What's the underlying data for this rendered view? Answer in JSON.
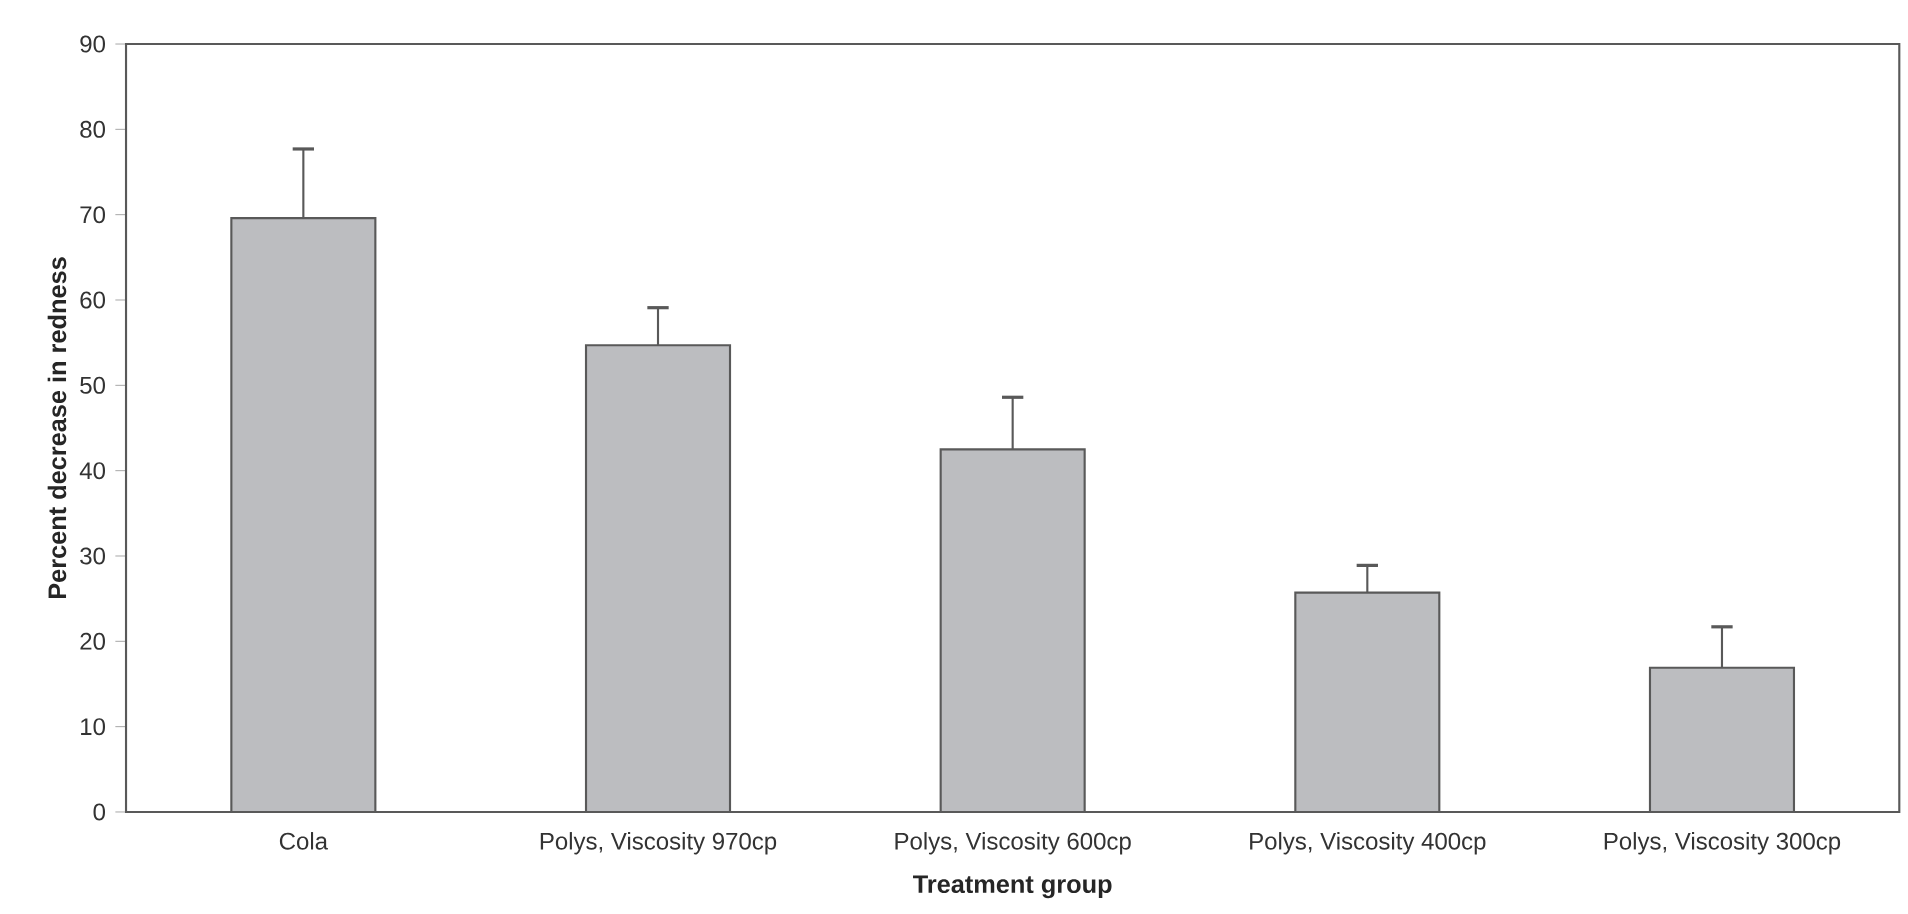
{
  "chart_data": {
    "type": "bar",
    "xlabel": "Treatment group",
    "ylabel": "Percent decrease in redness",
    "categories": [
      "Cola",
      "Polys, Viscosity 970cp",
      "Polys, Viscosity 600cp",
      "Polys, Viscosity 400cp",
      "Polys, Viscosity 300cp"
    ],
    "values": [
      69.6,
      54.7,
      42.5,
      25.7,
      16.9
    ],
    "errors": [
      [
        69.6,
        77.7
      ],
      [
        54.7,
        59.1
      ],
      [
        42.5,
        48.6
      ],
      [
        25.7,
        28.9
      ],
      [
        16.9,
        21.7
      ]
    ],
    "color": "#bcbdc0",
    "ylim": [
      0,
      90
    ],
    "yticks": [
      0,
      10,
      20,
      30,
      40,
      50,
      60,
      70,
      80,
      90
    ]
  }
}
